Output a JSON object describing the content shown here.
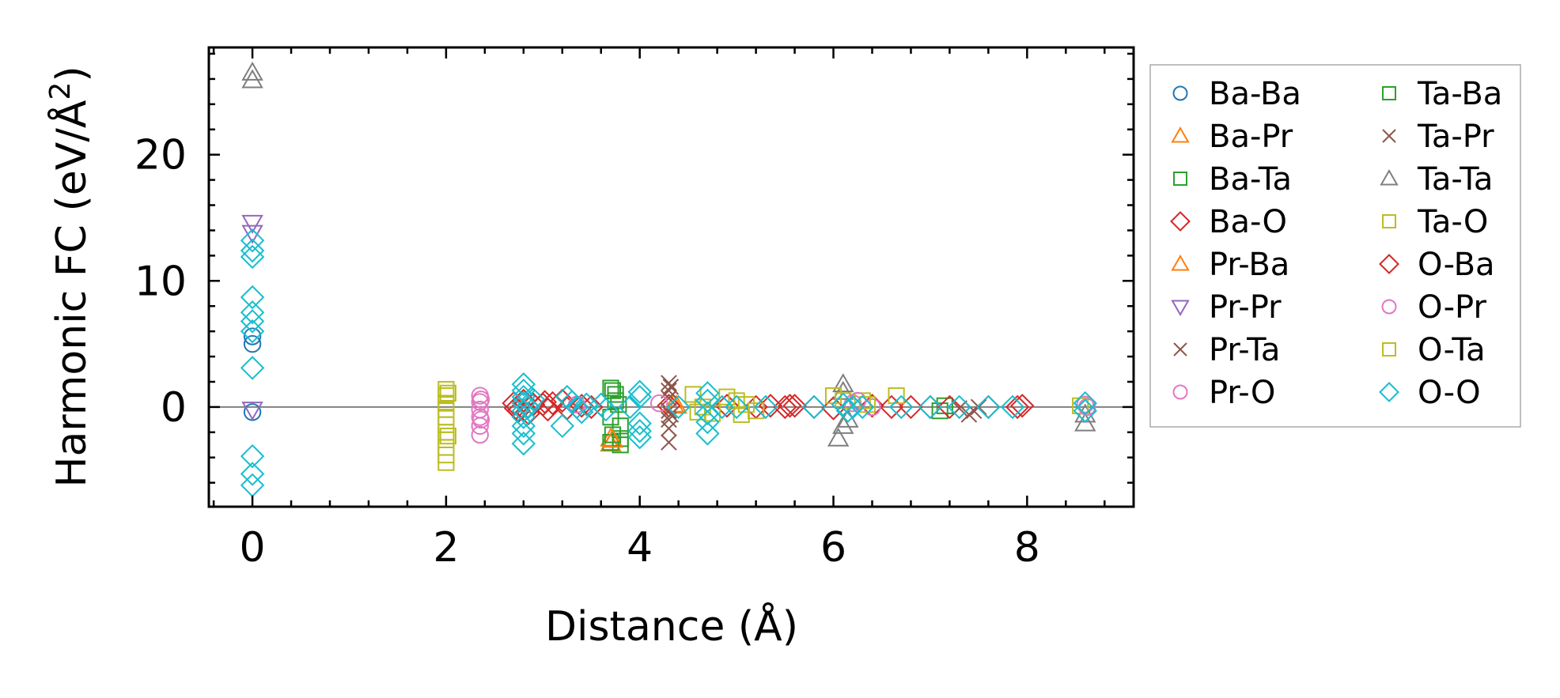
{
  "chart_data": {
    "type": "scatter",
    "xlabel": "Distance (Å)",
    "ylabel_main": "Harmonic FC (eV/Å",
    "ylabel_sup": "2",
    "ylabel_close": ")",
    "xlim": [
      -0.45,
      9.1
    ],
    "ylim": [
      -7.9,
      28.5
    ],
    "xticks": [
      0,
      2,
      4,
      6,
      8
    ],
    "xtick_labels": [
      "0",
      "2",
      "4",
      "6",
      "8"
    ],
    "yticks": [
      0,
      10,
      20
    ],
    "ytick_labels": [
      "0",
      "10",
      "20"
    ],
    "zero_line": 0,
    "legend_position": "outside right",
    "series": [
      {
        "name": "Ba-Ba",
        "marker": "circle",
        "color": "#1f77b4",
        "points": [
          [
            0,
            5.0
          ],
          [
            0,
            5.6
          ],
          [
            0,
            -0.4
          ]
        ]
      },
      {
        "name": "Ba-Pr",
        "marker": "triangle-up",
        "color": "#ff7f0e",
        "points": [
          [
            3.7,
            -2.5
          ],
          [
            3.7,
            -2.9
          ],
          [
            4.35,
            0.2
          ]
        ]
      },
      {
        "name": "Ba-Ta",
        "marker": "square",
        "color": "#2ca02c",
        "points": [
          [
            3.7,
            1.5
          ],
          [
            3.75,
            1.0
          ],
          [
            3.8,
            -2.5
          ],
          [
            3.7,
            -2.8
          ],
          [
            3.8,
            -3.0
          ],
          [
            3.75,
            0.5
          ],
          [
            3.7,
            -0.8
          ],
          [
            3.8,
            -1.5
          ],
          [
            7.1,
            -0.3
          ],
          [
            7.15,
            0.1
          ]
        ]
      },
      {
        "name": "Ba-O",
        "marker": "diamond",
        "color": "#d62728",
        "points": [
          [
            2.7,
            0.3
          ],
          [
            2.75,
            -0.3
          ],
          [
            2.8,
            0.5
          ],
          [
            2.85,
            -0.5
          ],
          [
            2.9,
            0.2
          ],
          [
            3.0,
            0.2
          ],
          [
            3.05,
            -0.2
          ],
          [
            3.1,
            0.3
          ],
          [
            3.2,
            0.5
          ],
          [
            3.25,
            -0.1
          ],
          [
            3.4,
            0.1
          ],
          [
            3.5,
            0.0
          ],
          [
            4.3,
            0.1
          ],
          [
            4.9,
            0.1
          ],
          [
            5.2,
            0.0
          ],
          [
            5.35,
            0.1
          ],
          [
            5.5,
            0.0
          ],
          [
            5.6,
            0.1
          ],
          [
            5.8,
            0.0
          ],
          [
            6.0,
            -0.1
          ],
          [
            6.2,
            0.0
          ],
          [
            6.4,
            0.1
          ],
          [
            6.6,
            0.0
          ],
          [
            6.8,
            0.0
          ],
          [
            7.0,
            0.0
          ],
          [
            7.2,
            0.0
          ],
          [
            7.6,
            0.0
          ],
          [
            7.9,
            0.0
          ]
        ]
      },
      {
        "name": "Pr-Ba",
        "marker": "triangle-up",
        "color": "#ff7f0e",
        "points": [
          [
            3.72,
            -2.6
          ],
          [
            4.38,
            0.1
          ]
        ]
      },
      {
        "name": "Pr-Pr",
        "marker": "triangle-down",
        "color": "#9467bd",
        "points": [
          [
            0,
            14.6
          ],
          [
            0,
            13.8
          ],
          [
            0,
            -0.2
          ]
        ]
      },
      {
        "name": "Pr-Ta",
        "marker": "x",
        "color": "#8c564b",
        "points": [
          [
            4.3,
            1.9
          ],
          [
            4.3,
            1.3
          ],
          [
            4.3,
            0.7
          ],
          [
            4.3,
            -0.3
          ],
          [
            4.3,
            -1.0
          ],
          [
            4.3,
            -1.7
          ],
          [
            4.3,
            -2.8
          ],
          [
            7.3,
            -0.1
          ],
          [
            7.4,
            -0.6
          ],
          [
            7.5,
            0.0
          ]
        ]
      },
      {
        "name": "Pr-O",
        "marker": "circle",
        "color": "#e377c2",
        "points": [
          [
            2.35,
            0.9
          ],
          [
            2.35,
            0.4
          ],
          [
            2.35,
            -0.2
          ],
          [
            2.35,
            -0.8
          ],
          [
            2.35,
            -1.5
          ],
          [
            2.35,
            -2.2
          ],
          [
            3.35,
            0.2
          ],
          [
            4.2,
            0.3
          ],
          [
            6.2,
            0.3
          ],
          [
            6.4,
            0.0
          ],
          [
            8.6,
            0.2
          ]
        ]
      },
      {
        "name": "Ta-Ba",
        "marker": "square",
        "color": "#2ca02c",
        "points": [
          [
            3.72,
            1.3
          ],
          [
            3.78,
            0.2
          ],
          [
            3.72,
            -2.2
          ]
        ]
      },
      {
        "name": "Ta-Pr",
        "marker": "x",
        "color": "#8c564b",
        "points": [
          [
            4.32,
            1.6
          ],
          [
            4.32,
            -0.6
          ],
          [
            7.45,
            -0.3
          ]
        ]
      },
      {
        "name": "Ta-Ta",
        "marker": "triangle-up",
        "color": "#7f7f7f",
        "points": [
          [
            0,
            26.5
          ],
          [
            0,
            25.9
          ],
          [
            6.1,
            1.8
          ],
          [
            6.1,
            1.2
          ],
          [
            6.1,
            -1.5
          ],
          [
            6.15,
            -1.0
          ],
          [
            6.05,
            -2.5
          ],
          [
            8.6,
            -0.6
          ],
          [
            8.6,
            -1.3
          ]
        ]
      },
      {
        "name": "Ta-O",
        "marker": "square",
        "color": "#bcbd22",
        "points": [
          [
            2.0,
            1.4
          ],
          [
            2.0,
            0.9
          ],
          [
            2.0,
            0.3
          ],
          [
            2.0,
            -0.2
          ],
          [
            2.0,
            -0.8
          ],
          [
            2.0,
            -1.4
          ],
          [
            2.0,
            -2.0
          ],
          [
            2.0,
            -2.6
          ],
          [
            2.0,
            -3.2
          ],
          [
            2.0,
            -3.8
          ],
          [
            2.0,
            -4.4
          ],
          [
            4.55,
            1.0
          ],
          [
            4.6,
            -0.4
          ],
          [
            4.9,
            0.8
          ],
          [
            5.0,
            0.5
          ],
          [
            5.05,
            -0.6
          ],
          [
            4.75,
            -0.5
          ],
          [
            5.2,
            -0.3
          ],
          [
            6.0,
            0.9
          ],
          [
            6.1,
            0.5
          ],
          [
            6.3,
            0.5
          ],
          [
            6.65,
            0.9
          ],
          [
            8.55,
            0.1
          ]
        ]
      },
      {
        "name": "O-Ba",
        "marker": "diamond",
        "color": "#d62728",
        "points": [
          [
            2.72,
            -0.1
          ],
          [
            3.02,
            0.4
          ],
          [
            5.55,
            0.1
          ],
          [
            7.95,
            0.1
          ]
        ]
      },
      {
        "name": "O-Pr",
        "marker": "circle",
        "color": "#e377c2",
        "points": [
          [
            2.36,
            0.6
          ],
          [
            2.36,
            -1.0
          ],
          [
            6.25,
            0.5
          ],
          [
            8.62,
            0.0
          ]
        ]
      },
      {
        "name": "O-Ta",
        "marker": "square",
        "color": "#bcbd22",
        "points": [
          [
            2.02,
            1.1
          ],
          [
            2.02,
            -2.3
          ],
          [
            4.65,
            0.0
          ],
          [
            5.1,
            0.2
          ],
          [
            6.35,
            0.2
          ]
        ]
      },
      {
        "name": "O-O",
        "marker": "diamond",
        "color": "#17becf",
        "points": [
          [
            0,
            13.2
          ],
          [
            0,
            12.4
          ],
          [
            0,
            11.9
          ],
          [
            0,
            8.7
          ],
          [
            0,
            7.5
          ],
          [
            0,
            6.8
          ],
          [
            0,
            6.0
          ],
          [
            0,
            3.1
          ],
          [
            0,
            -3.9
          ],
          [
            0,
            -5.3
          ],
          [
            0,
            -6.2
          ],
          [
            2.8,
            1.8
          ],
          [
            2.8,
            1.3
          ],
          [
            2.8,
            0.8
          ],
          [
            2.8,
            0.3
          ],
          [
            2.8,
            -0.3
          ],
          [
            2.8,
            -0.8
          ],
          [
            2.8,
            -1.5
          ],
          [
            2.8,
            -2.1
          ],
          [
            2.8,
            -2.9
          ],
          [
            2.85,
            0.0
          ],
          [
            2.9,
            0.6
          ],
          [
            3.2,
            -1.5
          ],
          [
            3.25,
            0.8
          ],
          [
            3.3,
            0.4
          ],
          [
            3.35,
            0.0
          ],
          [
            3.4,
            -0.4
          ],
          [
            3.45,
            0.2
          ],
          [
            3.6,
            0.2
          ],
          [
            3.65,
            -0.2
          ],
          [
            3.9,
            0.0
          ],
          [
            4.0,
            1.2
          ],
          [
            4.0,
            0.8
          ],
          [
            4.0,
            -1.3
          ],
          [
            4.0,
            -1.9
          ],
          [
            4.0,
            -2.4
          ],
          [
            4.4,
            0.0
          ],
          [
            4.7,
            1.1
          ],
          [
            4.7,
            0.5
          ],
          [
            4.7,
            -0.5
          ],
          [
            4.7,
            -1.2
          ],
          [
            4.7,
            -2.1
          ],
          [
            4.85,
            0.0
          ],
          [
            5.0,
            0.0
          ],
          [
            5.3,
            0.0
          ],
          [
            5.8,
            0.0
          ],
          [
            6.1,
            0.2
          ],
          [
            6.15,
            -0.3
          ],
          [
            6.2,
            0.0
          ],
          [
            6.3,
            0.0
          ],
          [
            6.7,
            0.0
          ],
          [
            7.0,
            0.0
          ],
          [
            7.3,
            0.0
          ],
          [
            7.6,
            0.0
          ],
          [
            7.85,
            0.0
          ],
          [
            8.6,
            0.3
          ],
          [
            8.6,
            -0.3
          ]
        ]
      }
    ]
  }
}
